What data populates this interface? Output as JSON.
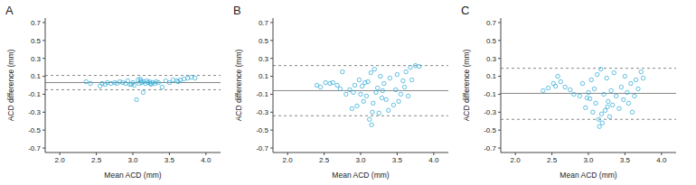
{
  "chart_data": [
    {
      "type": "scatter",
      "title": "A",
      "x_label": "Mean ACD (mm)",
      "y_label": "ACD difference (mm)",
      "color": "#3ab0d8",
      "marker": "open_circle",
      "grid": false,
      "xlim": [
        1.8,
        4.2
      ],
      "xticks": [
        {
          "value": 2,
          "label": "2.0"
        },
        {
          "value": 2.5,
          "label": "2.5"
        },
        {
          "value": 3,
          "label": "3.0"
        },
        {
          "value": 3.5,
          "label": "3.5"
        },
        {
          "value": 4,
          "label": "4.0"
        }
      ],
      "ylim": [
        -0.75,
        0.75
      ],
      "yticks": [
        -0.7,
        -0.5,
        -0.3,
        -0.1,
        0.1,
        0.3,
        0.5,
        0.7
      ],
      "mean_difference": 0.03,
      "limits_of_agreement": [
        -0.05,
        0.11
      ],
      "x": [
        2.36,
        2.42,
        2.55,
        2.58,
        2.62,
        2.65,
        2.7,
        2.75,
        2.78,
        2.82,
        2.86,
        2.9,
        2.93,
        2.96,
        3.0,
        3.02,
        3.05,
        3.07,
        3.09,
        3.1,
        3.12,
        3.14,
        3.15,
        3.17,
        3.19,
        3.21,
        3.23,
        3.25,
        3.27,
        3.3,
        3.32,
        3.35,
        3.4,
        3.45,
        3.5,
        3.55,
        3.6,
        3.62,
        3.65,
        3.7,
        3.75,
        3.8,
        3.85,
        2.98,
        3.11,
        3.24
      ],
      "values": [
        0.04,
        0.02,
        -0.01,
        0.02,
        0.01,
        0.03,
        0.02,
        0.03,
        0.02,
        0.04,
        0.03,
        0.02,
        0.05,
        0.01,
        0.03,
        0.0,
        -0.16,
        0.06,
        0.02,
        0.07,
        0.03,
        -0.08,
        0.04,
        0.02,
        0.05,
        0.03,
        0.04,
        0.01,
        0.03,
        0.02,
        0.04,
        0.03,
        -0.02,
        0.05,
        0.03,
        0.06,
        0.05,
        0.04,
        0.06,
        0.07,
        0.08,
        0.09,
        0.08,
        0.01,
        0.05,
        0.02
      ]
    },
    {
      "type": "scatter",
      "title": "B",
      "x_label": "Mean ACD (mm)",
      "y_label": "ACD difference (mm)",
      "color": "#3ab0d8",
      "marker": "open_circle",
      "grid": false,
      "xlim": [
        1.8,
        4.2
      ],
      "xticks": [
        {
          "value": 2,
          "label": "2.0"
        },
        {
          "value": 2.5,
          "label": "2.5"
        },
        {
          "value": 3,
          "label": "3.0"
        },
        {
          "value": 3.5,
          "label": "3.5"
        },
        {
          "value": 4,
          "label": "4.0"
        }
      ],
      "ylim": [
        -0.75,
        0.75
      ],
      "yticks": [
        -0.7,
        -0.5,
        -0.3,
        -0.1,
        0.1,
        0.3,
        0.5,
        0.7
      ],
      "mean_difference": -0.06,
      "limits_of_agreement": [
        -0.34,
        0.22
      ],
      "x": [
        2.4,
        2.45,
        2.52,
        2.58,
        2.62,
        2.68,
        2.72,
        2.75,
        2.8,
        2.85,
        2.88,
        2.92,
        2.95,
        2.98,
        3.0,
        3.02,
        3.04,
        3.06,
        3.08,
        3.1,
        3.12,
        3.14,
        3.15,
        3.17,
        3.19,
        3.21,
        3.23,
        3.25,
        3.27,
        3.29,
        3.3,
        3.32,
        3.35,
        3.38,
        3.4,
        3.45,
        3.48,
        3.5,
        3.52,
        3.55,
        3.58,
        3.6,
        3.62,
        3.65,
        3.68,
        3.7,
        3.75,
        3.8,
        2.9,
        3.16
      ],
      "values": [
        0.0,
        -0.02,
        0.03,
        0.02,
        0.03,
        0.0,
        -0.04,
        0.15,
        -0.1,
        -0.05,
        -0.26,
        0.0,
        -0.23,
        0.06,
        -0.1,
        -0.01,
        -0.18,
        0.03,
        -0.12,
        0.04,
        -0.38,
        0.14,
        -0.44,
        -0.2,
        0.18,
        -0.08,
        -0.03,
        -0.31,
        0.1,
        -0.14,
        -0.06,
        0.02,
        -0.16,
        -0.28,
        0.08,
        -0.22,
        -0.05,
        0.12,
        -0.18,
        -0.1,
        0.05,
        -0.02,
        0.15,
        -0.12,
        0.2,
        0.06,
        0.22,
        0.21,
        -0.08,
        -0.3
      ]
    },
    {
      "type": "scatter",
      "title": "C",
      "x_label": "Mean ACD (mm)",
      "y_label": "ACD difference (mm)",
      "color": "#3ab0d8",
      "marker": "open_circle",
      "grid": false,
      "xlim": [
        1.8,
        4.2
      ],
      "xticks": [
        {
          "value": 2,
          "label": "2.0"
        },
        {
          "value": 2.5,
          "label": "2.5"
        },
        {
          "value": 3,
          "label": "3.0"
        },
        {
          "value": 3.5,
          "label": "3.5"
        },
        {
          "value": 4,
          "label": "4.0"
        }
      ],
      "ylim": [
        -0.75,
        0.75
      ],
      "yticks": [
        -0.7,
        -0.5,
        -0.3,
        -0.1,
        0.1,
        0.3,
        0.5,
        0.7
      ],
      "mean_difference": -0.09,
      "limits_of_agreement": [
        -0.38,
        0.19
      ],
      "x": [
        2.38,
        2.45,
        2.52,
        2.55,
        2.58,
        2.62,
        2.68,
        2.75,
        2.8,
        2.88,
        2.92,
        2.96,
        3.0,
        3.02,
        3.04,
        3.06,
        3.08,
        3.1,
        3.12,
        3.14,
        3.15,
        3.17,
        3.19,
        3.21,
        3.23,
        3.25,
        3.27,
        3.29,
        3.31,
        3.33,
        3.35,
        3.38,
        3.42,
        3.45,
        3.48,
        3.5,
        3.53,
        3.55,
        3.58,
        3.6,
        3.63,
        3.65,
        3.68,
        3.72,
        3.75,
        2.98,
        3.18,
        3.26
      ],
      "values": [
        -0.06,
        -0.03,
        0.02,
        -0.01,
        0.1,
        0.04,
        -0.02,
        -0.05,
        -0.1,
        -0.12,
        0.02,
        -0.25,
        -0.08,
        -0.15,
        0.06,
        -0.3,
        -0.04,
        -0.2,
        0.12,
        -0.38,
        -0.46,
        0.18,
        -0.42,
        -0.1,
        -0.28,
        0.08,
        -0.18,
        -0.35,
        -0.06,
        -0.22,
        0.14,
        -0.12,
        -0.26,
        -0.02,
        -0.16,
        0.1,
        -0.08,
        -0.2,
        0.02,
        -0.3,
        -0.12,
        0.06,
        -0.04,
        0.15,
        0.08,
        -0.14,
        -0.32,
        -0.24
      ]
    }
  ]
}
